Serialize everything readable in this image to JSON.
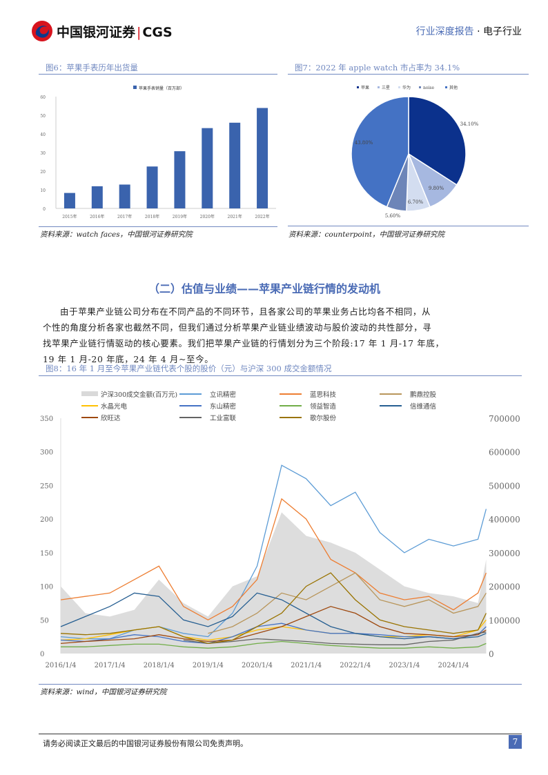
{
  "header": {
    "logo_text": "中国银河证券",
    "logo_brand": "CGS",
    "report_type": "行业深度报告",
    "separator": "·",
    "industry": "电子行业"
  },
  "fig6": {
    "title": "图6：苹果手表历年出货量",
    "source": "资料来源：watch faces，中国银河证券研究院"
  },
  "fig7": {
    "title": "图7：2022 年 apple watch 市占率为 34.1%",
    "source": "资料来源：counterpoint，中国银河证券研究院"
  },
  "section": {
    "title": "（二）估值与业绩——苹果产业链行情的发动机",
    "paragraph_lines": [
      "由于苹果产业链公司分布在不同产品的不同环节，且各家公司的苹果业务占比均各不相同，从",
      "个性的角度分析各家也截然不同，但我们通过分析苹果产业链业绩波动与股价波动的共性部分，寻",
      "找苹果产业链行情驱动的核心要素。我们把苹果产业链的行情划分为三个阶段:17 年 1 月-17 年底，",
      "19 年 1 月-20 年底，24 年 4 月~至今。"
    ]
  },
  "fig8": {
    "title": "图8：16 年 1 月至今苹果产业链代表个股的股价（元）与沪深 300 成交金额情况",
    "source": "资料来源：wind，中国银河证券研究院"
  },
  "footer": {
    "disclaimer": "请务必阅读正文最后的中国银河证券股份有限公司免责声明。",
    "page_number": "7"
  },
  "chart_data": [
    {
      "type": "bar",
      "categories": [
        "2015年",
        "2016年",
        "2017年",
        "2018年",
        "2019年",
        "2020年",
        "2021年",
        "2022年"
      ],
      "series": [
        {
          "name": "苹果手表销量（百万部）",
          "values": [
            8.3,
            11.9,
            12.8,
            22.5,
            30.7,
            43.1,
            46.0,
            53.9
          ]
        }
      ],
      "ylim": [
        0,
        60
      ],
      "yticks": [
        0,
        10,
        20,
        30,
        40,
        50,
        60
      ],
      "color": "#3a63ad",
      "legend": "top"
    },
    {
      "type": "pie",
      "labels": [
        "苹果",
        "三星",
        "华为",
        "noise",
        "其他"
      ],
      "values": [
        34.1,
        9.8,
        6.7,
        5.6,
        43.8
      ],
      "value_labels": [
        "34.10%",
        "9.80%",
        "6.70%",
        "5.60%",
        "43.80%"
      ],
      "colors": [
        "#0b318c",
        "#a6b8e0",
        "#d3ddf0",
        "#6d85b8",
        "#4472c4"
      ],
      "legend": "top"
    },
    {
      "type": "line",
      "x": [
        "2016-01",
        "2016-07",
        "2017-01",
        "2017-07",
        "2018-01",
        "2018-07",
        "2019-01",
        "2019-07",
        "2020-01",
        "2020-07",
        "2021-01",
        "2021-07",
        "2022-01",
        "2022-07",
        "2023-01",
        "2023-07",
        "2024-01",
        "2024-07",
        "2024-09"
      ],
      "xticks": [
        "2016/1/4",
        "2017/1/4",
        "2018/1/4",
        "2019/1/4",
        "2020/1/4",
        "2021/1/4",
        "2022/1/4",
        "2023/1/4",
        "2024/1/4"
      ],
      "ylim_left": [
        0,
        350
      ],
      "yticks_left": [
        0,
        50,
        100,
        150,
        200,
        250,
        300,
        350
      ],
      "ylim_right": [
        0,
        700000
      ],
      "yticks_right": [
        0,
        100000,
        200000,
        300000,
        400000,
        500000,
        600000,
        700000
      ],
      "area": {
        "name": "沪深300成交金额(百万元)",
        "axis": "right",
        "color": "#d9d9d9",
        "values": [
          200000,
          120000,
          110000,
          130000,
          220000,
          150000,
          110000,
          200000,
          230000,
          420000,
          350000,
          330000,
          300000,
          250000,
          200000,
          180000,
          170000,
          150000,
          280000
        ]
      },
      "series": [
        {
          "name": "立讯精密",
          "color": "#5b9bd5",
          "values": [
            25,
            22,
            22,
            35,
            40,
            30,
            25,
            60,
            130,
            280,
            260,
            220,
            240,
            180,
            150,
            170,
            160,
            170,
            215
          ]
        },
        {
          "name": "蓝思科技",
          "color": "#ed7d31",
          "values": [
            80,
            85,
            90,
            110,
            130,
            70,
            50,
            70,
            110,
            230,
            200,
            140,
            120,
            90,
            80,
            85,
            65,
            90,
            120
          ]
        },
        {
          "name": "鹏鼎控股",
          "color": "#b8955a",
          "values": [
            null,
            null,
            null,
            null,
            null,
            null,
            30,
            40,
            60,
            90,
            80,
            100,
            120,
            80,
            70,
            80,
            60,
            70,
            90
          ]
        },
        {
          "name": "水晶光电",
          "color": "#ffc000",
          "values": [
            20,
            22,
            28,
            35,
            40,
            25,
            20,
            25,
            35,
            40,
            35,
            30,
            30,
            25,
            25,
            28,
            25,
            35,
            50
          ]
        },
        {
          "name": "东山精密",
          "color": "#4472c4",
          "values": [
            20,
            18,
            22,
            28,
            25,
            18,
            15,
            25,
            40,
            45,
            35,
            30,
            30,
            28,
            25,
            25,
            22,
            28,
            40
          ]
        },
        {
          "name": "领益智造",
          "color": "#70ad47",
          "values": [
            10,
            10,
            12,
            14,
            14,
            10,
            8,
            10,
            15,
            18,
            15,
            12,
            10,
            8,
            8,
            10,
            8,
            10,
            15
          ]
        },
        {
          "name": "信维通信",
          "color": "#255e91",
          "values": [
            40,
            55,
            70,
            90,
            85,
            50,
            40,
            55,
            90,
            80,
            60,
            40,
            30,
            25,
            22,
            25,
            22,
            25,
            30
          ]
        },
        {
          "name": "欣旺达",
          "color": "#9e480e",
          "values": [
            15,
            18,
            20,
            22,
            28,
            22,
            18,
            20,
            30,
            40,
            55,
            70,
            60,
            40,
            30,
            28,
            25,
            28,
            35
          ]
        },
        {
          "name": "工业富联",
          "color": "#636363",
          "values": [
            null,
            null,
            null,
            null,
            null,
            20,
            15,
            18,
            22,
            20,
            18,
            15,
            14,
            13,
            13,
            18,
            20,
            30,
            32
          ]
        },
        {
          "name": "歌尔股份",
          "color": "#997300",
          "values": [
            30,
            28,
            30,
            35,
            40,
            25,
            15,
            20,
            40,
            60,
            100,
            120,
            80,
            50,
            40,
            35,
            30,
            35,
            60
          ]
        }
      ],
      "legend": "top"
    }
  ]
}
